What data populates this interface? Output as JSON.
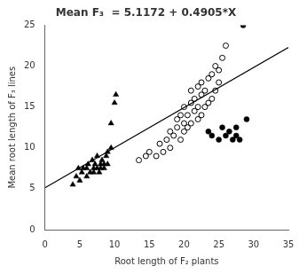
{
  "chart_data": {
    "type": "scatter",
    "title": "Mean F₃  = 5.1172 + 0.4905*X",
    "xlabel": "Root length of F₂ plants",
    "ylabel": "Mean root length of F₃ lines",
    "xlim": [
      0,
      35
    ],
    "ylim": [
      0,
      25
    ],
    "xticks": [
      0,
      5,
      10,
      15,
      20,
      25,
      30,
      35
    ],
    "yticks": [
      0,
      5,
      10,
      15,
      20,
      25
    ],
    "grid": false,
    "series": [
      {
        "type": "line",
        "color": "#000000",
        "line_style": "solid",
        "x": [
          0,
          35
        ],
        "values": [
          5.1172,
          22.2847
        ]
      },
      {
        "type": "scatter",
        "color": "#000000",
        "marker": "triangle",
        "x": [
          4.0,
          4.5,
          4.8,
          5.0,
          5.3,
          5.5,
          6.0,
          6.0,
          6.2,
          6.5,
          6.8,
          7.0,
          7.0,
          7.2,
          7.5,
          7.5,
          7.8,
          8.0,
          8.0,
          8.2,
          8.5,
          8.5,
          8.8,
          9.0,
          9.0,
          9.5,
          9.5,
          10.0,
          10.2
        ],
        "values": [
          5.5,
          6.5,
          7.5,
          6.0,
          7.0,
          7.5,
          6.5,
          7.5,
          8.0,
          7.0,
          8.5,
          7.0,
          7.5,
          8.0,
          7.5,
          9.0,
          7.0,
          7.5,
          8.0,
          8.5,
          7.5,
          8.0,
          9.0,
          8.0,
          9.5,
          10.0,
          13.0,
          15.5,
          16.5
        ]
      },
      {
        "type": "scatter",
        "color": "#000000",
        "marker": "open_circle",
        "x": [
          13.5,
          14.5,
          15.0,
          16.0,
          16.5,
          17.0,
          17.5,
          18.0,
          18.0,
          18.5,
          19.0,
          19.0,
          19.5,
          19.5,
          20.0,
          20.0,
          20.0,
          20.5,
          20.5,
          21.0,
          21.0,
          21.0,
          21.5,
          21.5,
          22.0,
          22.0,
          22.0,
          22.5,
          22.5,
          22.5,
          23.0,
          23.0,
          23.5,
          23.5,
          24.0,
          24.0,
          24.5,
          24.5,
          25.0,
          25.0,
          25.5,
          26.0
        ],
        "values": [
          8.5,
          9.0,
          9.5,
          9.0,
          10.5,
          9.5,
          11.0,
          10.0,
          12.0,
          11.5,
          12.5,
          13.5,
          11.0,
          14.0,
          12.0,
          13.0,
          15.0,
          12.5,
          14.0,
          13.0,
          15.5,
          17.0,
          14.5,
          16.0,
          13.5,
          15.0,
          17.5,
          14.0,
          16.5,
          18.0,
          15.0,
          17.0,
          15.5,
          18.5,
          16.0,
          19.0,
          17.0,
          20.0,
          18.0,
          19.5,
          21.0,
          22.5
        ]
      },
      {
        "type": "scatter",
        "color": "#000000",
        "marker": "circle",
        "x": [
          23.5,
          24.0,
          25.0,
          25.5,
          26.0,
          26.5,
          27.0,
          27.5,
          27.5,
          28.0,
          28.5,
          29.0
        ],
        "values": [
          12.0,
          11.5,
          11.0,
          12.5,
          11.5,
          12.0,
          11.0,
          12.5,
          11.5,
          11.0,
          25.0,
          13.5
        ]
      }
    ]
  }
}
